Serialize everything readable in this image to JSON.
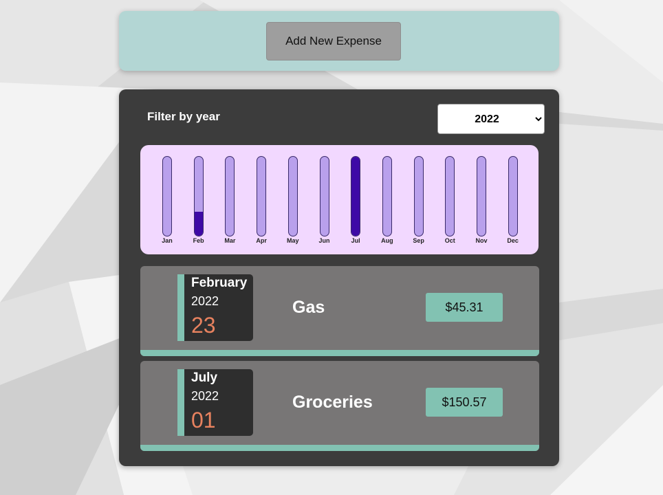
{
  "colors": {
    "accent_teal": "#82c2b2",
    "panel_dark": "#3c3c3c",
    "item_gray": "#787676",
    "chart_bg": "#f2d8ff",
    "bar_track": "#b9a0ec",
    "bar_fill": "#3e0aa6",
    "day_orange": "#e8825f"
  },
  "new_expense": {
    "button_label": "Add New Expense"
  },
  "filter": {
    "label": "Filter by year",
    "selected_year": "2022",
    "options": [
      "2022"
    ]
  },
  "chart_data": {
    "type": "bar",
    "categories": [
      "Jan",
      "Feb",
      "Mar",
      "Apr",
      "May",
      "Jun",
      "Jul",
      "Aug",
      "Sep",
      "Oct",
      "Nov",
      "Dec"
    ],
    "values": [
      0,
      45.31,
      0,
      0,
      0,
      0,
      150.57,
      0,
      0,
      0,
      0,
      0
    ],
    "ylim": [
      0,
      150.57
    ],
    "grid": false
  },
  "expenses": [
    {
      "month": "February",
      "year": "2022",
      "day": "23",
      "title": "Gas",
      "amount": "$45.31"
    },
    {
      "month": "July",
      "year": "2022",
      "day": "01",
      "title": "Groceries",
      "amount": "$150.57"
    }
  ]
}
